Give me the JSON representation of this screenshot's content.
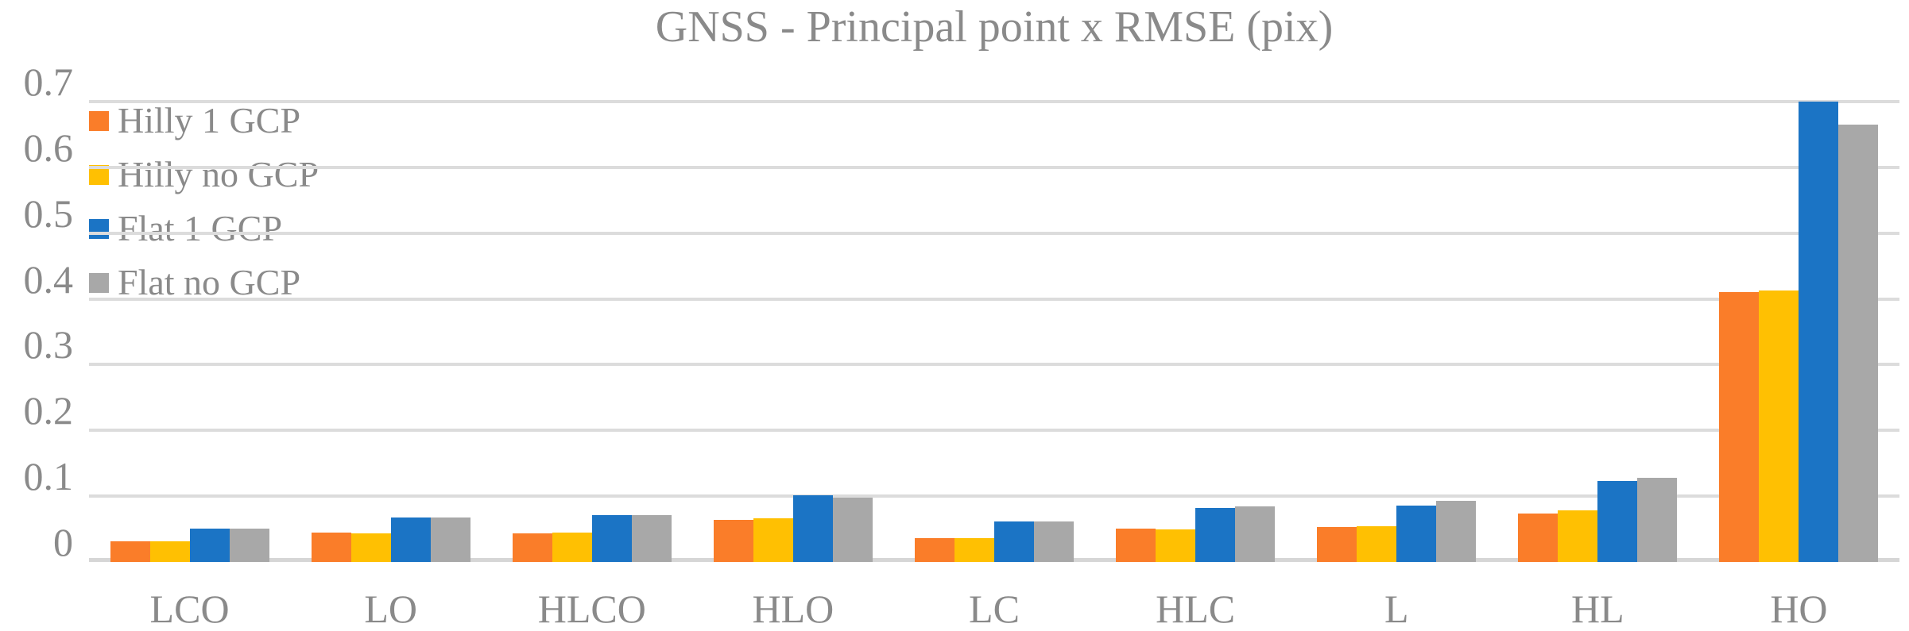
{
  "chart_data": {
    "type": "bar",
    "title": "GNSS - Principal point x RMSE (pix)",
    "categories": [
      "LCO",
      "LO",
      "HLCO",
      "HLO",
      "LC",
      "HLC",
      "L",
      "HL",
      "HO"
    ],
    "series": [
      {
        "name": "Hilly 1 GCP",
        "color": "#fa7d29",
        "values": [
          0.032,
          0.045,
          0.044,
          0.064,
          0.036,
          0.051,
          0.053,
          0.074,
          0.41
        ]
      },
      {
        "name": "Hilly no GCP",
        "color": "#ffc002",
        "values": [
          0.032,
          0.044,
          0.045,
          0.067,
          0.036,
          0.05,
          0.054,
          0.078,
          0.413
        ]
      },
      {
        "name": "Flat 1 GCP",
        "color": "#1b74c5",
        "values": [
          0.051,
          0.068,
          0.071,
          0.102,
          0.061,
          0.082,
          0.086,
          0.123,
          0.7
        ]
      },
      {
        "name": "Flat no GCP",
        "color": "#a8a8a8",
        "values": [
          0.051,
          0.068,
          0.071,
          0.098,
          0.061,
          0.084,
          0.093,
          0.128,
          0.665
        ]
      }
    ],
    "xlabel": "",
    "ylabel": "",
    "ylim": [
      0,
      0.7
    ],
    "yticks": [
      0,
      0.1,
      0.2,
      0.3,
      0.4,
      0.5,
      0.6,
      0.7
    ],
    "ytick_labels": [
      "0",
      "0.1",
      "0.2",
      "0.3",
      "0.4",
      "0.5",
      "0.6",
      "0.7"
    ],
    "grid": true,
    "legend_position": "top-left-inside",
    "styles": {
      "gridline_color": "#dcdcdc",
      "axis_line_color": "#d6d6d6",
      "text_color": "#8a8a8a",
      "background": "#ffffff"
    }
  }
}
